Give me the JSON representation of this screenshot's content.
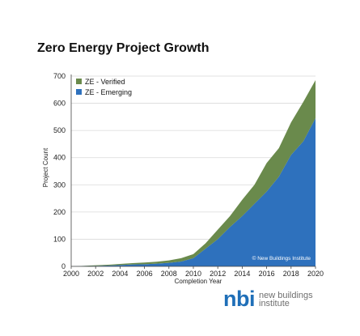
{
  "chart_data": {
    "type": "area",
    "stacked": true,
    "title": "Zero Energy Project Growth",
    "xlabel": "Completion Year",
    "ylabel": "Project Count",
    "xlim": [
      2000,
      2020
    ],
    "ylim": [
      0,
      700
    ],
    "x_ticks": [
      2000,
      2002,
      2004,
      2006,
      2008,
      2010,
      2012,
      2014,
      2016,
      2018,
      2020
    ],
    "y_ticks": [
      0,
      100,
      200,
      300,
      400,
      500,
      600,
      700
    ],
    "grid": true,
    "legend_position": "top-left",
    "annotation": "© New Buildings Institute",
    "x": [
      2000,
      2001,
      2002,
      2003,
      2004,
      2005,
      2006,
      2007,
      2008,
      2009,
      2010,
      2011,
      2012,
      2013,
      2014,
      2015,
      2016,
      2017,
      2018,
      2019,
      2020
    ],
    "series": [
      {
        "name": "ZE - Emerging",
        "color": "#2e71bd",
        "values": [
          0,
          1,
          2,
          3,
          5,
          7,
          8,
          10,
          13,
          18,
          30,
          65,
          100,
          145,
          185,
          230,
          275,
          330,
          410,
          460,
          545
        ]
      },
      {
        "name": "ZE - Verified",
        "color": "#6a8a4c",
        "values": [
          0,
          1,
          2,
          3,
          4,
          5,
          6,
          7,
          9,
          12,
          15,
          20,
          35,
          40,
          60,
          70,
          105,
          105,
          120,
          145,
          140
        ]
      }
    ]
  },
  "logo": {
    "mark": "nbi",
    "line1": "new buildings",
    "line2": "institute"
  }
}
